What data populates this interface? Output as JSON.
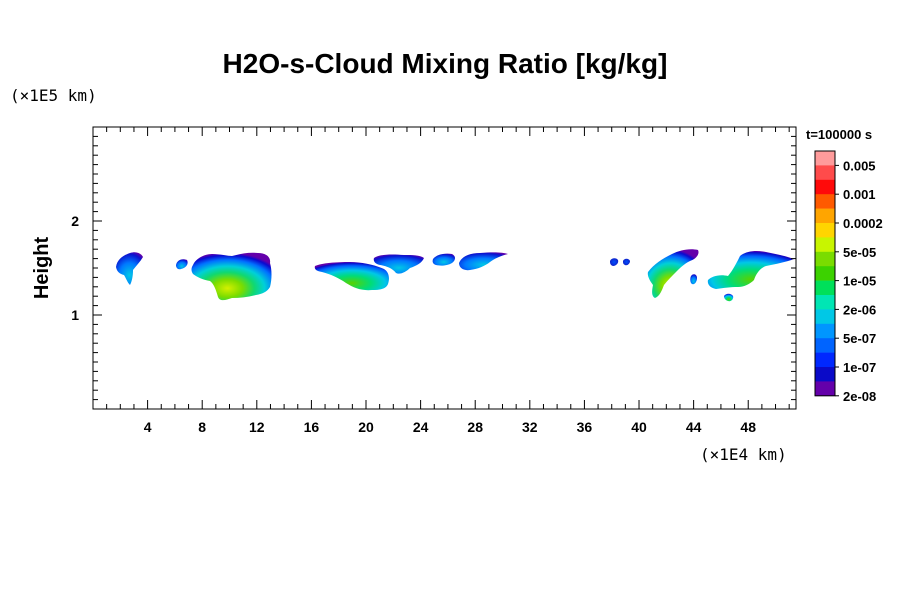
{
  "chart_data": {
    "type": "heatmap",
    "title": "H2O-s-Cloud Mixing Ratio [kg/kg]",
    "xlabel": "",
    "ylabel": "Height",
    "x_unit": "(×1E4 km)",
    "y_unit": "(×1E5 km)",
    "xlim": [
      0,
      51.5
    ],
    "ylim": [
      0,
      3
    ],
    "x_ticks": [
      "4",
      "8",
      "12",
      "16",
      "20",
      "24",
      "28",
      "32",
      "36",
      "40",
      "44",
      "48"
    ],
    "x_tick_values": [
      4,
      8,
      12,
      16,
      20,
      24,
      28,
      32,
      36,
      40,
      44,
      48
    ],
    "y_ticks": [
      "1",
      "2"
    ],
    "y_tick_values": [
      1,
      2
    ],
    "time_label": "t=100000 s",
    "colorbar": {
      "levels": [
        "0.005",
        "0.001",
        "0.0002",
        "5e-05",
        "1e-05",
        "2e-06",
        "5e-07",
        "1e-07",
        "2e-08"
      ],
      "colors": [
        "#ff9b9b",
        "#ff4b4b",
        "#ff0a0a",
        "#ff5a00",
        "#ffa500",
        "#ffd500",
        "#c8f500",
        "#7adc00",
        "#3cd200",
        "#00e05a",
        "#00e6b4",
        "#00c8e6",
        "#0096ff",
        "#0064ff",
        "#0028ff",
        "#0a0ac8",
        "#6400aa"
      ]
    },
    "clouds": [
      {
        "x_start": 1.8,
        "x_end": 3.6,
        "y_bottom": 1.35,
        "y_top": 1.66,
        "max_level": "5e-07"
      },
      {
        "x_start": 6.0,
        "x_end": 7.0,
        "y_bottom": 1.5,
        "y_top": 1.6,
        "max_level": "5e-07"
      },
      {
        "x_start": 7.8,
        "x_end": 13.2,
        "y_bottom": 1.17,
        "y_top": 1.66,
        "max_level": "5e-05"
      },
      {
        "x_start": 16.0,
        "x_end": 21.8,
        "y_bottom": 1.28,
        "y_top": 1.55,
        "max_level": "1e-05"
      },
      {
        "x_start": 20.5,
        "x_end": 24.2,
        "y_bottom": 1.45,
        "y_top": 1.65,
        "max_level": "5e-07"
      },
      {
        "x_start": 24.6,
        "x_end": 26.2,
        "y_bottom": 1.55,
        "y_top": 1.65,
        "max_level": "5e-07"
      },
      {
        "x_start": 26.3,
        "x_end": 30.0,
        "y_bottom": 1.45,
        "y_top": 1.66,
        "max_level": "5e-07"
      },
      {
        "x_start": 37.5,
        "x_end": 39.6,
        "y_bottom": 1.52,
        "y_top": 1.6,
        "max_level": "1e-07"
      },
      {
        "x_start": 40.3,
        "x_end": 44.2,
        "y_bottom": 1.2,
        "y_top": 1.7,
        "max_level": "5e-05"
      },
      {
        "x_start": 44.0,
        "x_end": 51.0,
        "y_bottom": 1.18,
        "y_top": 1.67,
        "max_level": "1e-05"
      }
    ]
  }
}
